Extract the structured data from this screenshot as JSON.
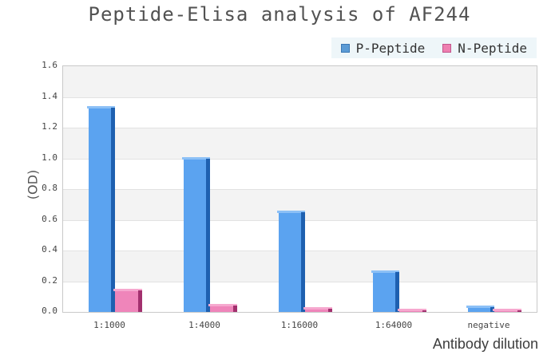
{
  "chart_data": {
    "type": "bar",
    "title": "Peptide-Elisa analysis of AF244",
    "xlabel": "Antibody dilution",
    "ylabel": "(OD)",
    "categories": [
      "1:1000",
      "1:4000",
      "1:16000",
      "1:64000",
      "negative"
    ],
    "series": [
      {
        "name": "P-Peptide",
        "values": [
          1.34,
          1.01,
          0.66,
          0.27,
          0.04
        ],
        "face_color": "#5ba3f0",
        "side_color": "#1e60b0",
        "top_color": "#8cc0f6",
        "legend_swatch": "#5b9bd5",
        "legend_swatch_border": "#3c78b4"
      },
      {
        "name": "N-Peptide",
        "values": [
          0.15,
          0.05,
          0.03,
          0.02,
          0.02
        ],
        "face_color": "#ef85ba",
        "side_color": "#a2306e",
        "top_color": "#f6a8cf",
        "legend_swatch": "#ee7fb0",
        "legend_swatch_border": "#c2568c"
      }
    ],
    "ylim": [
      0,
      1.6
    ],
    "ytick_labels": [
      "1.6",
      "1.4",
      "1.2",
      "1.0",
      "0.8",
      "0.6",
      "0.4",
      "0.2",
      "0.0"
    ],
    "grid": true,
    "legend_position": "top-right",
    "band_fill": "#f3f3f3",
    "band_alt_fill": "#ffffff",
    "grid_color": "#e2e2e2",
    "plot_border_color": "#c9c9c9",
    "legend_bg": "#eef6f9",
    "title_color": "#525252",
    "axis_text_color": "#454545"
  }
}
